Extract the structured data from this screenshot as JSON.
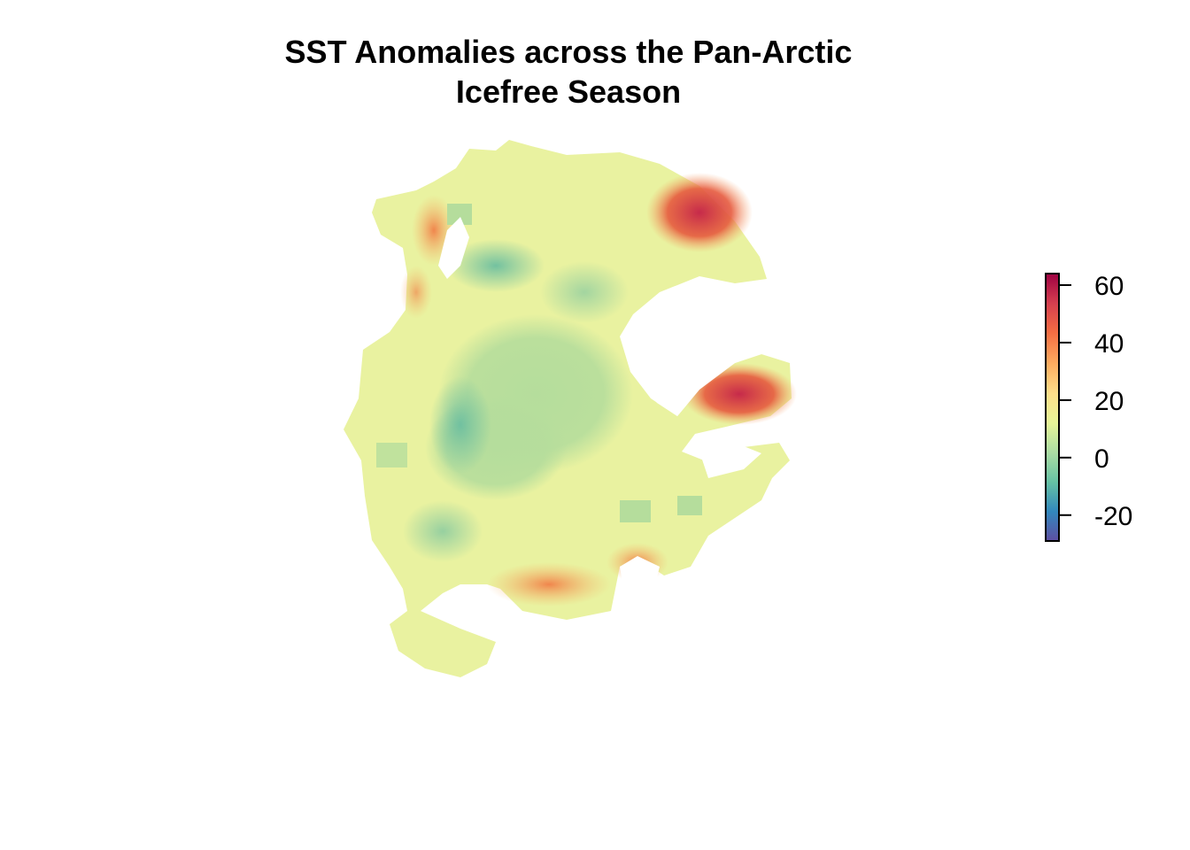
{
  "title": {
    "line1": "SST Anomalies across the Pan-Arctic",
    "line2": "Icefree Season"
  },
  "map": {
    "projection": "north-polar-stereographic",
    "layer": "SST anomaly raster",
    "colormap": "Spectral (reversed)",
    "colors": {
      "min": "#5e4fa2",
      "low": "#3288bd",
      "mid_low": "#66c2a5",
      "neutral_low": "#abdda4",
      "neutral": "#e6f598",
      "light": "#fee08b",
      "warm": "#fdae61",
      "hot": "#f46d43",
      "hotter": "#d53e4f",
      "max": "#9e0142"
    }
  },
  "legend": {
    "range": [
      -29,
      64
    ],
    "ticks": [
      {
        "value": 60,
        "label": "60"
      },
      {
        "value": 40,
        "label": "40"
      },
      {
        "value": 20,
        "label": "20"
      },
      {
        "value": 0,
        "label": "0"
      },
      {
        "value": -20,
        "label": "-20"
      }
    ]
  }
}
